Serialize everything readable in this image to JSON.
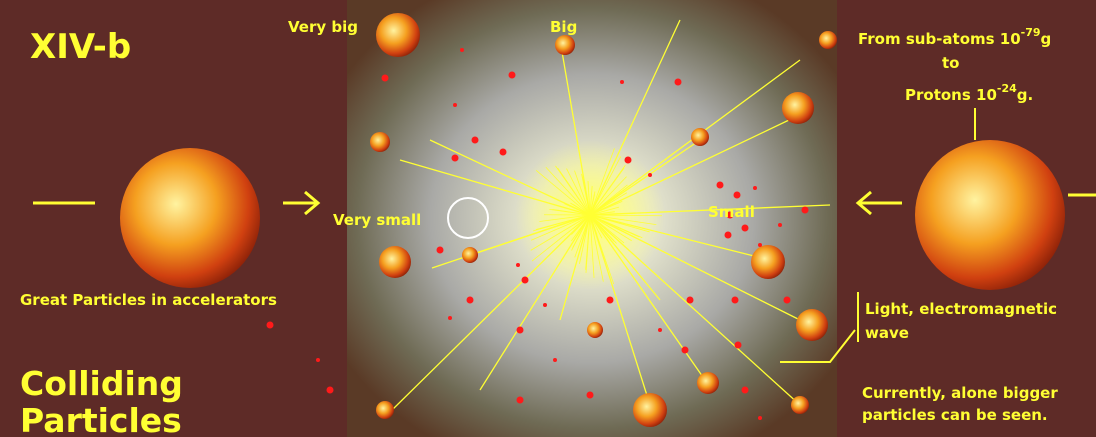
{
  "code": "XIV-b",
  "labels": {
    "very_big": "Very big",
    "big": "Big",
    "very_small": "Very small",
    "small": "Small"
  },
  "range": {
    "line1": {
      "text": "From sub-atoms 10",
      "exp": "-79",
      "unit": "g"
    },
    "line2": "to",
    "line3": {
      "text": "Protons 10",
      "exp": "-24",
      "unit": "g."
    }
  },
  "left_caption": "Great Particles in accelerators",
  "title": {
    "line1": "Colliding",
    "line2": "Particles"
  },
  "light": {
    "line1": "Light, electromagnetic",
    "line2": "wave"
  },
  "note": {
    "line1": "Currently, alone bigger",
    "line2": "particles can be seen."
  }
}
